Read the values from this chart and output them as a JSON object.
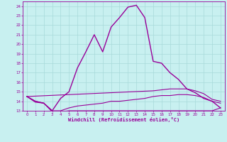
{
  "xlabel": "Windchill (Refroidissement éolien,°C)",
  "bg_color": "#c8f0f0",
  "grid_color": "#a8dada",
  "line_color": "#990099",
  "x_hours": [
    0,
    1,
    2,
    3,
    4,
    5,
    6,
    7,
    8,
    9,
    10,
    11,
    12,
    13,
    14,
    15,
    16,
    17,
    18,
    19,
    20,
    21,
    22,
    23
  ],
  "series_main": [
    14.5,
    14.0,
    13.8,
    13.0,
    14.3,
    15.0,
    17.5,
    19.2,
    21.0,
    19.2,
    21.8,
    22.8,
    23.9,
    24.1,
    22.8,
    18.2,
    18.0,
    17.0,
    16.3,
    15.3,
    14.9,
    14.3,
    14.0,
    13.3
  ],
  "series_mid": [
    14.5,
    14.0,
    13.8,
    13.0,
    13.0,
    13.3,
    13.5,
    13.6,
    13.7,
    13.8,
    14.0,
    14.0,
    14.1,
    14.2,
    14.3,
    14.5,
    14.6,
    14.6,
    14.7,
    14.7,
    14.6,
    14.4,
    14.0,
    13.8
  ],
  "series_low": [
    14.5,
    13.9,
    13.8,
    12.9,
    12.9,
    13.0,
    13.0,
    13.0,
    13.0,
    13.0,
    13.0,
    13.0,
    13.0,
    13.0,
    13.0,
    13.0,
    13.0,
    13.0,
    13.0,
    13.0,
    13.0,
    13.0,
    13.0,
    13.3
  ],
  "series_top": [
    14.5,
    null,
    null,
    null,
    null,
    null,
    null,
    null,
    null,
    null,
    null,
    null,
    null,
    null,
    null,
    15.1,
    15.2,
    15.3,
    15.3,
    15.3,
    15.1,
    14.8,
    14.2,
    14.0
  ],
  "ylim_min": 13,
  "ylim_max": 24.5,
  "yticks": [
    13,
    14,
    15,
    16,
    17,
    18,
    19,
    20,
    21,
    22,
    23,
    24
  ],
  "xlim_min": -0.5,
  "xlim_max": 23.5
}
